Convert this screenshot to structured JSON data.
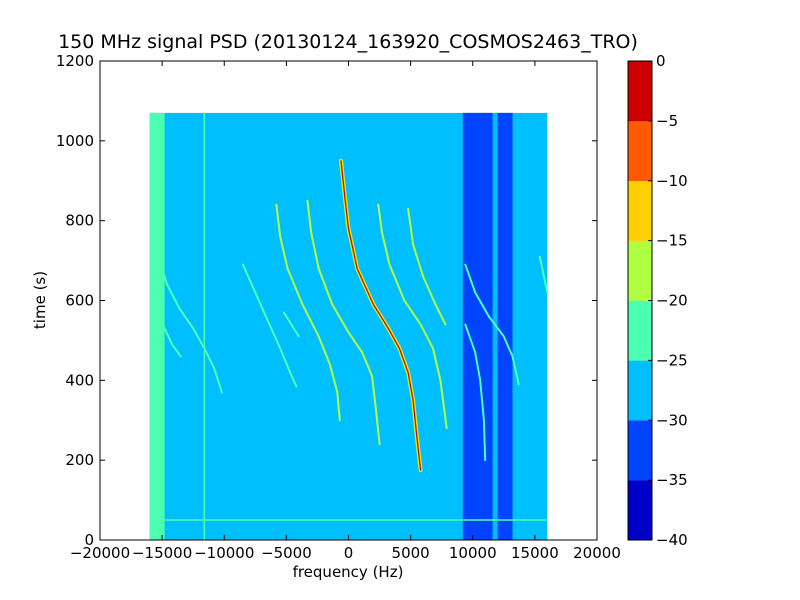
{
  "chart_data": {
    "type": "heatmap",
    "title": "150 MHz signal PSD (20130124_163920_COSMOS2463_TRO)",
    "xlabel": "frequency (Hz)",
    "ylabel": "time (s)",
    "xlim": [
      -20000,
      20000
    ],
    "ylim": [
      0,
      1200
    ],
    "x_ticks": [
      -20000,
      -15000,
      -10000,
      -5000,
      0,
      5000,
      10000,
      15000,
      20000
    ],
    "x_tick_labels": [
      "−20000",
      "−15000",
      "−10000",
      "−5000",
      "0",
      "5000",
      "10000",
      "15000",
      "20000"
    ],
    "y_ticks": [
      0,
      200,
      400,
      600,
      800,
      1000,
      1200
    ],
    "y_tick_labels": [
      "0",
      "200",
      "400",
      "600",
      "800",
      "1000",
      "1200"
    ],
    "data_extent": {
      "x": [
        -16000,
        16000
      ],
      "y": [
        0,
        1070
      ]
    },
    "background_level": -27.5,
    "colorbar": {
      "levels": [
        -40,
        -35,
        -30,
        -25,
        -20,
        -15,
        -10,
        -5,
        0
      ],
      "tick_labels": [
        "−40",
        "−35",
        "−30",
        "−25",
        "−20",
        "−15",
        "−10",
        "−5",
        "0"
      ],
      "colors": [
        "#0000c8",
        "#0044ff",
        "#00bfff",
        "#4cffb0",
        "#b0ff40",
        "#ffd000",
        "#ff5a00",
        "#cc0000"
      ]
    },
    "bands": [
      {
        "x_from": -16000,
        "x_to": -14800,
        "y_from": 0,
        "y_to": 1070,
        "level": -22.5
      },
      {
        "x_from": 9200,
        "x_to": 11600,
        "y_from": 0,
        "y_to": 1070,
        "level": -32.5
      },
      {
        "x_from": 12000,
        "x_to": 13200,
        "y_from": 0,
        "y_to": 1070,
        "level": -32.5
      }
    ],
    "lines": [
      {
        "orientation": "vertical",
        "x": -11600,
        "y_from": 0,
        "y_to": 1070,
        "level": -22.5
      },
      {
        "orientation": "horizontal",
        "y": 50,
        "x_from": -14800,
        "x_to": 16000,
        "level": -22.5
      }
    ],
    "traces": [
      {
        "level": -2.5,
        "points": [
          [
            -600,
            950
          ],
          [
            -300,
            860
          ],
          [
            0,
            780
          ],
          [
            700,
            680
          ],
          [
            2000,
            590
          ],
          [
            3200,
            530
          ],
          [
            4100,
            480
          ],
          [
            4800,
            420
          ],
          [
            5200,
            350
          ],
          [
            5500,
            260
          ],
          [
            5800,
            175
          ]
        ]
      },
      {
        "level": -17.5,
        "points": [
          [
            -3300,
            850
          ],
          [
            -3000,
            770
          ],
          [
            -2400,
            680
          ],
          [
            -1300,
            590
          ],
          [
            0,
            520
          ],
          [
            1100,
            470
          ],
          [
            1900,
            410
          ],
          [
            2200,
            330
          ],
          [
            2500,
            240
          ]
        ]
      },
      {
        "level": -17.5,
        "points": [
          [
            2400,
            840
          ],
          [
            2700,
            770
          ],
          [
            3300,
            690
          ],
          [
            4500,
            600
          ],
          [
            5800,
            540
          ],
          [
            6800,
            480
          ],
          [
            7400,
            400
          ],
          [
            7900,
            280
          ]
        ]
      },
      {
        "level": -17.5,
        "points": [
          [
            -5800,
            840
          ],
          [
            -5500,
            760
          ],
          [
            -4900,
            680
          ],
          [
            -3700,
            590
          ],
          [
            -2400,
            510
          ],
          [
            -1500,
            440
          ],
          [
            -900,
            370
          ],
          [
            -700,
            300
          ]
        ]
      },
      {
        "level": -17.5,
        "points": [
          [
            4800,
            830
          ],
          [
            5200,
            740
          ],
          [
            6000,
            660
          ],
          [
            7000,
            590
          ],
          [
            7800,
            540
          ]
        ]
      },
      {
        "level": -22.5,
        "points": [
          [
            -15000,
            680
          ],
          [
            -14600,
            640
          ],
          [
            -13600,
            580
          ],
          [
            -12500,
            530
          ],
          [
            -11600,
            480
          ],
          [
            -10800,
            430
          ],
          [
            -10200,
            370
          ]
        ]
      },
      {
        "level": -22.5,
        "points": [
          [
            -8500,
            690
          ],
          [
            -7500,
            620
          ],
          [
            -6500,
            550
          ],
          [
            -5500,
            480
          ],
          [
            -4700,
            420
          ],
          [
            -4200,
            385
          ]
        ]
      },
      {
        "level": -22.5,
        "points": [
          [
            -15200,
            560
          ],
          [
            -14800,
            530
          ],
          [
            -14200,
            490
          ],
          [
            -13500,
            460
          ]
        ]
      },
      {
        "level": -22.5,
        "points": [
          [
            -5200,
            570
          ],
          [
            -4600,
            540
          ],
          [
            -4000,
            510
          ]
        ]
      },
      {
        "level": -22.5,
        "points": [
          [
            9400,
            690
          ],
          [
            10200,
            620
          ],
          [
            11300,
            560
          ],
          [
            12500,
            510
          ],
          [
            13200,
            460
          ],
          [
            13700,
            390
          ]
        ]
      },
      {
        "level": -22.5,
        "points": [
          [
            9400,
            540
          ],
          [
            10200,
            470
          ],
          [
            10600,
            400
          ],
          [
            10900,
            300
          ],
          [
            11000,
            200
          ]
        ]
      },
      {
        "level": -22.5,
        "points": [
          [
            15400,
            710
          ],
          [
            15800,
            650
          ],
          [
            16000,
            620
          ]
        ]
      }
    ]
  }
}
